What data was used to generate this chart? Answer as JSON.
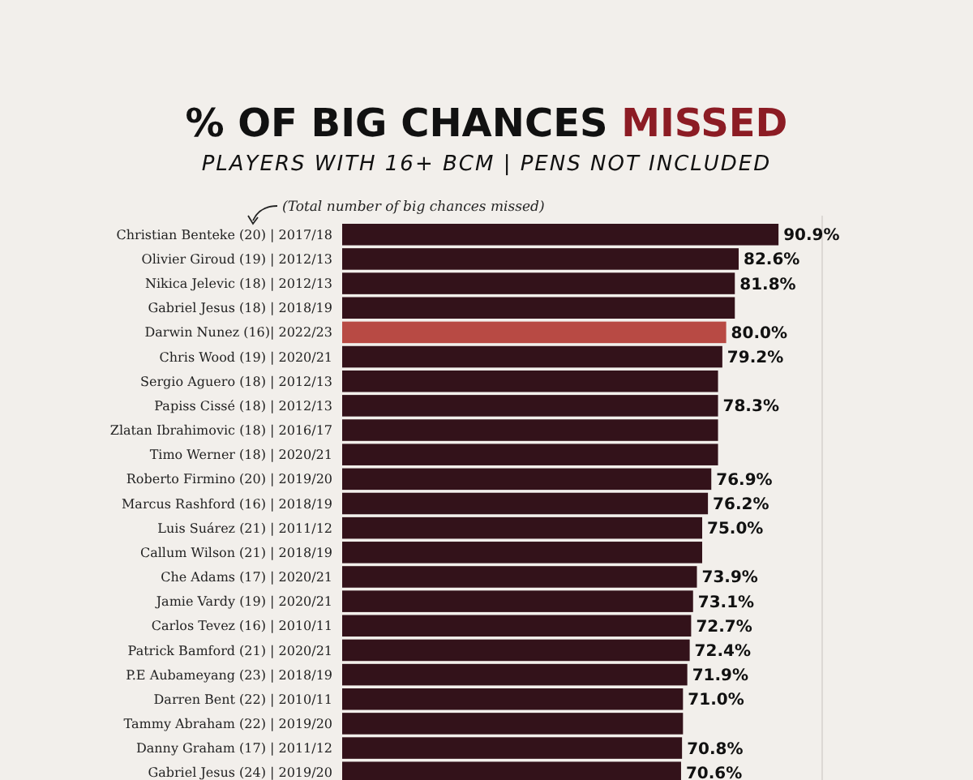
{
  "chart_data": {
    "type": "bar",
    "orientation": "horizontal",
    "title": "% OF BIG CHANCES MISSED",
    "subtitle": "PLAYERS WITH 16+ BCM | PENS NOT INCLUDED",
    "annotations": [
      "(Total number of big chances missed)"
    ],
    "categories": [
      "Christian Benteke (20) | 2017/18",
      "Olivier Giroud (19) | 2012/13",
      "Nikica Jelevic (18) | 2012/13",
      "Gabriel Jesus (18) | 2018/19",
      "Darwin Nunez (16)| 2022/23",
      "Chris Wood (19) | 2020/21",
      "Sergio Aguero (18) | 2012/13",
      "Papiss Cissé (18) | 2012/13",
      "Zlatan Ibrahimovic (18) | 2016/17",
      "Timo Werner (18) | 2020/21",
      "Roberto Firmino (20) | 2019/20",
      "Marcus Rashford (16) | 2018/19",
      "Luis Suárez (21) | 2011/12",
      "Callum Wilson (21) | 2018/19",
      "Che Adams (17) | 2020/21",
      "Jamie Vardy (19) | 2020/21",
      "Carlos Tevez (16) | 2010/11",
      "Patrick Bamford (21) | 2020/21",
      "P.E Aubameyang (23) | 2018/19",
      "Darren Bent (22) | 2010/11",
      "Tammy Abraham (22) | 2019/20",
      "Danny Graham (17) | 2011/12",
      "Gabriel Jesus (24) | 2019/20"
    ],
    "values": [
      90.9,
      82.6,
      81.8,
      81.8,
      80.0,
      79.2,
      78.3,
      78.3,
      78.3,
      78.3,
      76.9,
      76.2,
      75.0,
      75.0,
      73.9,
      73.1,
      72.7,
      72.4,
      71.9,
      71.0,
      71.0,
      70.8,
      70.6
    ],
    "value_labels": [
      "90.9%",
      "82.6%",
      "81.8%",
      null,
      "80.0%",
      "79.2%",
      null,
      "78.3%",
      null,
      null,
      "76.9%",
      "76.2%",
      "75.0%",
      null,
      "73.9%",
      "73.1%",
      "72.7%",
      "72.4%",
      "71.9%",
      "71.0%",
      null,
      "70.8%",
      "70.6%"
    ],
    "colors": [
      "#33121a",
      "#33121a",
      "#33121a",
      "#33121a",
      "#b84a44",
      "#33121a",
      "#33121a",
      "#33121a",
      "#33121a",
      "#33121a",
      "#33121a",
      "#33121a",
      "#33121a",
      "#33121a",
      "#33121a",
      "#33121a",
      "#33121a",
      "#33121a",
      "#33121a",
      "#33121a",
      "#33121a",
      "#33121a",
      "#33121a"
    ],
    "xlim": [
      0,
      100
    ],
    "ref_lines": [
      {
        "axis": "x",
        "value": 100,
        "color": "#dcd8d4"
      }
    ]
  }
}
